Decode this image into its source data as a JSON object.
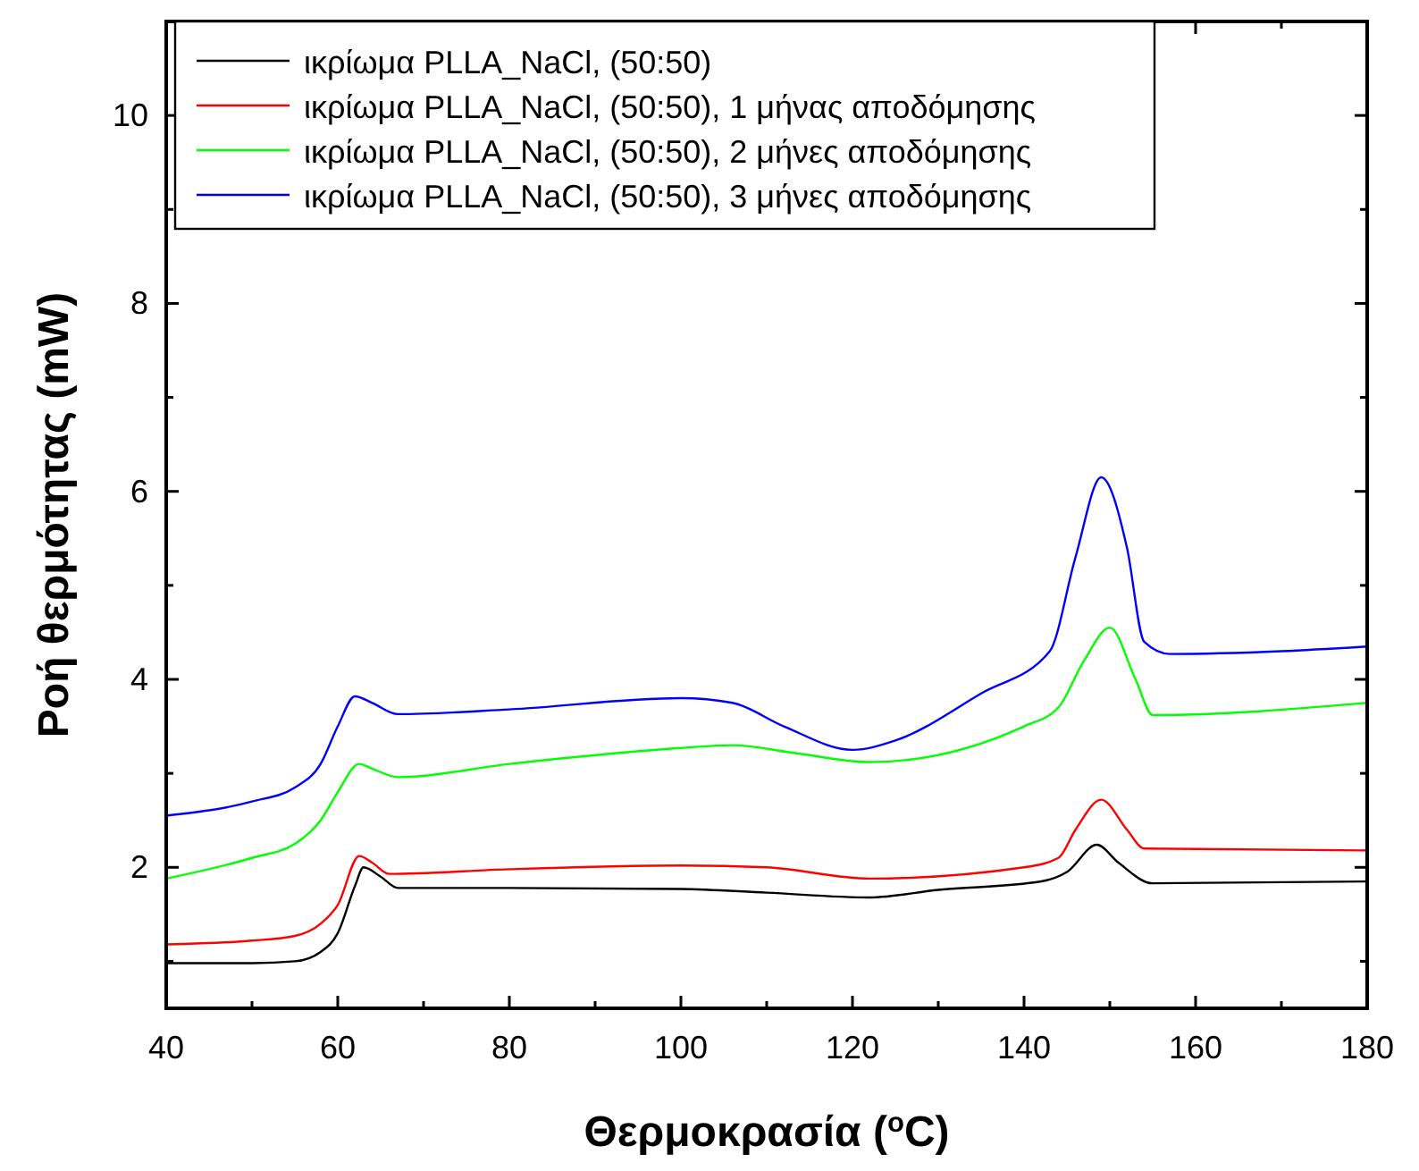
{
  "chart_data": {
    "type": "line",
    "xlabel": "Θερμοκρασία ($^{o}$C)",
    "ylabel": "Ροή θερμότητας (mW)",
    "xlim": [
      40,
      180
    ],
    "ylim": [
      0.5,
      11
    ],
    "xticks": [
      40,
      {
        "value": 50,
        "label": null
      },
      60,
      {
        "value": 70,
        "label": null
      },
      80,
      {
        "value": 90,
        "label": null
      },
      100,
      {
        "value": 110,
        "label": null
      },
      120,
      {
        "value": 130,
        "label": null
      },
      140,
      {
        "value": 150,
        "label": null
      },
      160,
      {
        "value": 170,
        "label": null
      },
      180
    ],
    "yticks": [
      {
        "value": 1,
        "label": null
      },
      2,
      {
        "value": 3,
        "label": null
      },
      4,
      {
        "value": 5,
        "label": null
      },
      6,
      {
        "value": 7,
        "label": null
      },
      8,
      {
        "value": 9,
        "label": null
      },
      10
    ],
    "grid": false,
    "legend": "top left",
    "marker": "none",
    "line_style": "solid",
    "series": [
      {
        "name": "ικρίωμα PLLA_NaCl, (50:50)",
        "color": "#000000",
        "x": [
          40,
          50,
          55,
          58,
          60,
          62,
          63,
          65,
          67,
          80,
          100,
          110,
          122,
          130,
          142,
          145,
          148.5,
          151,
          155,
          180
        ],
        "values": [
          0.98,
          0.98,
          1.0,
          1.1,
          1.3,
          1.8,
          2.0,
          1.9,
          1.78,
          1.78,
          1.77,
          1.73,
          1.68,
          1.76,
          1.85,
          1.95,
          2.24,
          2.05,
          1.83,
          1.85
        ]
      },
      {
        "name": "ικρίωμα PLLA_NaCl, (50:50), 1 μήνας αποδόμησης",
        "color": "#ff0000",
        "x": [
          40,
          50,
          55,
          58,
          60,
          62.5,
          64,
          66,
          80,
          100,
          110,
          122,
          140,
          144,
          146,
          149,
          152,
          154,
          180
        ],
        "values": [
          1.18,
          1.22,
          1.27,
          1.4,
          1.6,
          2.12,
          2.05,
          1.93,
          1.98,
          2.02,
          2.0,
          1.88,
          2.0,
          2.1,
          2.4,
          2.72,
          2.4,
          2.2,
          2.18
        ]
      },
      {
        "name": "ικρίωμα PLLA_NaCl, (50:50), 2 μήνες αποδόμησης",
        "color": "#00ff00",
        "x": [
          40,
          50,
          55,
          58,
          60,
          62.5,
          64,
          67,
          80,
          100,
          106,
          113,
          122,
          140,
          144,
          147,
          150,
          153,
          155,
          180
        ],
        "values": [
          1.88,
          2.1,
          2.25,
          2.5,
          2.8,
          3.1,
          3.05,
          2.96,
          3.1,
          3.27,
          3.3,
          3.22,
          3.12,
          3.5,
          3.7,
          4.2,
          4.55,
          4.0,
          3.62,
          3.75
        ]
      },
      {
        "name": "ικρίωμα PLLA_NaCl, (50:50), 3 μήνες αποδόμησης",
        "color": "#0000ff",
        "x": [
          40,
          50,
          55,
          58,
          60,
          62,
          64,
          67,
          80,
          100,
          106,
          112,
          120,
          125,
          135,
          143,
          146,
          149,
          152,
          154,
          157,
          170,
          180
        ],
        "values": [
          2.55,
          2.7,
          2.85,
          3.1,
          3.5,
          3.82,
          3.75,
          3.63,
          3.68,
          3.8,
          3.75,
          3.5,
          3.25,
          3.35,
          3.85,
          4.3,
          5.3,
          6.15,
          5.4,
          4.4,
          4.27,
          4.3,
          4.35
        ]
      }
    ]
  }
}
